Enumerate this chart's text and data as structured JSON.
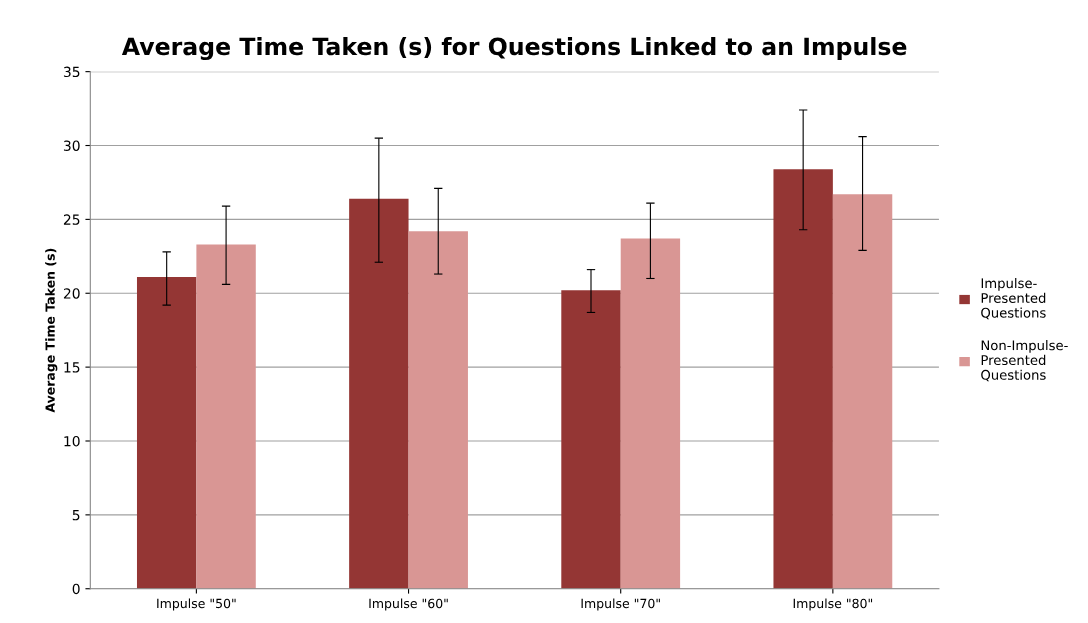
{
  "chart_data": {
    "type": "bar",
    "title": "Average Time Taken (s) for Questions Linked to an Impulse",
    "ylabel": "Average Time Taken (s)",
    "categories": [
      "Impulse \"50\"",
      "Impulse \"60\"",
      "Impulse \"70\"",
      "Impulse \"80\""
    ],
    "series": [
      {
        "name": "Impulse-\nPresented\nQuestions",
        "color": "#943634",
        "values": [
          21.1,
          26.4,
          20.2,
          28.4
        ],
        "errors": [
          [
            19.2,
            22.8
          ],
          [
            22.1,
            30.5
          ],
          [
            18.7,
            21.6
          ],
          [
            24.3,
            32.4
          ]
        ]
      },
      {
        "name": "Non-Impulse-\nPresented\nQuestions",
        "color": "#d99694",
        "values": [
          23.3,
          24.2,
          23.7,
          26.7
        ],
        "errors": [
          [
            20.6,
            25.9
          ],
          [
            21.3,
            27.1
          ],
          [
            21.0,
            26.1
          ],
          [
            22.9,
            30.6
          ]
        ]
      }
    ],
    "ylim": [
      0,
      35
    ],
    "yticks": [
      0,
      5,
      10,
      15,
      20,
      25,
      30,
      35
    ],
    "grid": "y",
    "legend": "right"
  }
}
